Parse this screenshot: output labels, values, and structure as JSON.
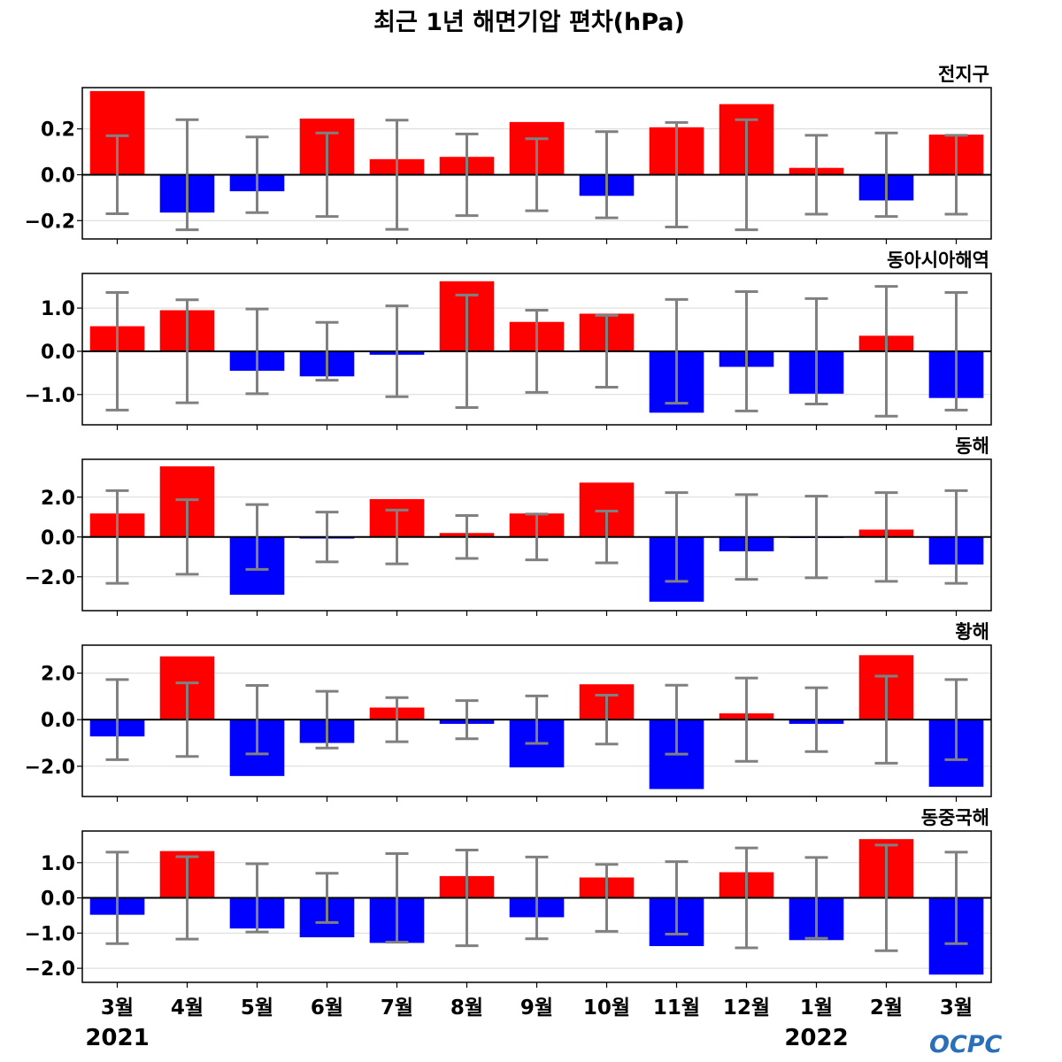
{
  "chart_data": {
    "type": "bar",
    "title": "최근 1년 해면기압 편차(hPa)",
    "categories": [
      "3월",
      "4월",
      "5월",
      "6월",
      "7월",
      "8월",
      "9월",
      "10월",
      "11월",
      "12월",
      "1월",
      "2월",
      "3월"
    ],
    "years": [
      {
        "label": "2021",
        "index": 0
      },
      {
        "label": "2022",
        "index": 10
      }
    ],
    "colors": {
      "positive": "#ff0000",
      "negative": "#0000ff",
      "error_bar": "#808080"
    },
    "logo": "OCPC",
    "panels": [
      {
        "title": "전지구",
        "ylim": [
          -0.28,
          0.38
        ],
        "yticks": [
          -0.2,
          0.0,
          0.2
        ],
        "ytick_labels": [
          "−0.2",
          "0.0",
          "0.2"
        ],
        "values": [
          0.365,
          -0.165,
          -0.072,
          0.245,
          0.068,
          0.078,
          0.23,
          -0.092,
          0.207,
          0.308,
          0.03,
          -0.112,
          0.175
        ],
        "error": [
          0.17,
          0.24,
          0.165,
          0.182,
          0.238,
          0.178,
          0.157,
          0.188,
          0.228,
          0.24,
          0.172,
          0.182,
          0.172
        ]
      },
      {
        "title": "동아시아해역",
        "ylim": [
          -1.7,
          1.8
        ],
        "yticks": [
          -1.0,
          0.0,
          1.0
        ],
        "ytick_labels": [
          "−1.0",
          "0.0",
          "1.0"
        ],
        "values": [
          0.58,
          0.95,
          -0.45,
          -0.58,
          -0.08,
          1.62,
          0.68,
          0.87,
          -1.42,
          -0.36,
          -0.98,
          0.36,
          -1.08
        ],
        "error": [
          1.36,
          1.19,
          0.98,
          0.67,
          1.05,
          1.3,
          0.95,
          0.83,
          1.2,
          1.38,
          1.22,
          1.5,
          1.36
        ]
      },
      {
        "title": "동해",
        "ylim": [
          -3.7,
          3.9
        ],
        "yticks": [
          -2.0,
          0.0,
          2.0
        ],
        "ytick_labels": [
          "−2.0",
          "0.0",
          "2.0"
        ],
        "values": [
          1.18,
          3.55,
          -2.9,
          -0.08,
          1.9,
          0.2,
          1.18,
          2.73,
          -3.25,
          -0.72,
          -0.05,
          0.37,
          -1.38
        ],
        "error": [
          2.33,
          1.87,
          1.63,
          1.25,
          1.35,
          1.08,
          1.15,
          1.3,
          2.23,
          2.13,
          2.05,
          2.23,
          2.33
        ]
      },
      {
        "title": "황해",
        "ylim": [
          -3.3,
          3.2
        ],
        "yticks": [
          -2.0,
          0.0,
          2.0
        ],
        "ytick_labels": [
          "−2.0",
          "0.0",
          "2.0"
        ],
        "values": [
          -0.72,
          2.72,
          -2.42,
          -1.0,
          0.52,
          -0.18,
          -2.05,
          1.52,
          -2.98,
          0.27,
          -0.18,
          2.77,
          -2.88
        ],
        "error": [
          1.72,
          1.58,
          1.47,
          1.22,
          0.95,
          0.82,
          1.02,
          1.05,
          1.48,
          1.79,
          1.37,
          1.87,
          1.72
        ]
      },
      {
        "title": "동중국해",
        "ylim": [
          -2.4,
          1.9
        ],
        "yticks": [
          -2.0,
          -1.0,
          0.0,
          1.0
        ],
        "ytick_labels": [
          "−2.0",
          "−1.0",
          "0.0",
          "1.0"
        ],
        "values": [
          -0.48,
          1.33,
          -0.87,
          -1.12,
          -1.28,
          0.62,
          -0.55,
          0.58,
          -1.37,
          0.73,
          -1.2,
          1.67,
          -2.18
        ],
        "error": [
          1.3,
          1.17,
          0.97,
          0.7,
          1.26,
          1.36,
          1.16,
          0.95,
          1.03,
          1.42,
          1.15,
          1.5,
          1.3
        ]
      }
    ]
  }
}
